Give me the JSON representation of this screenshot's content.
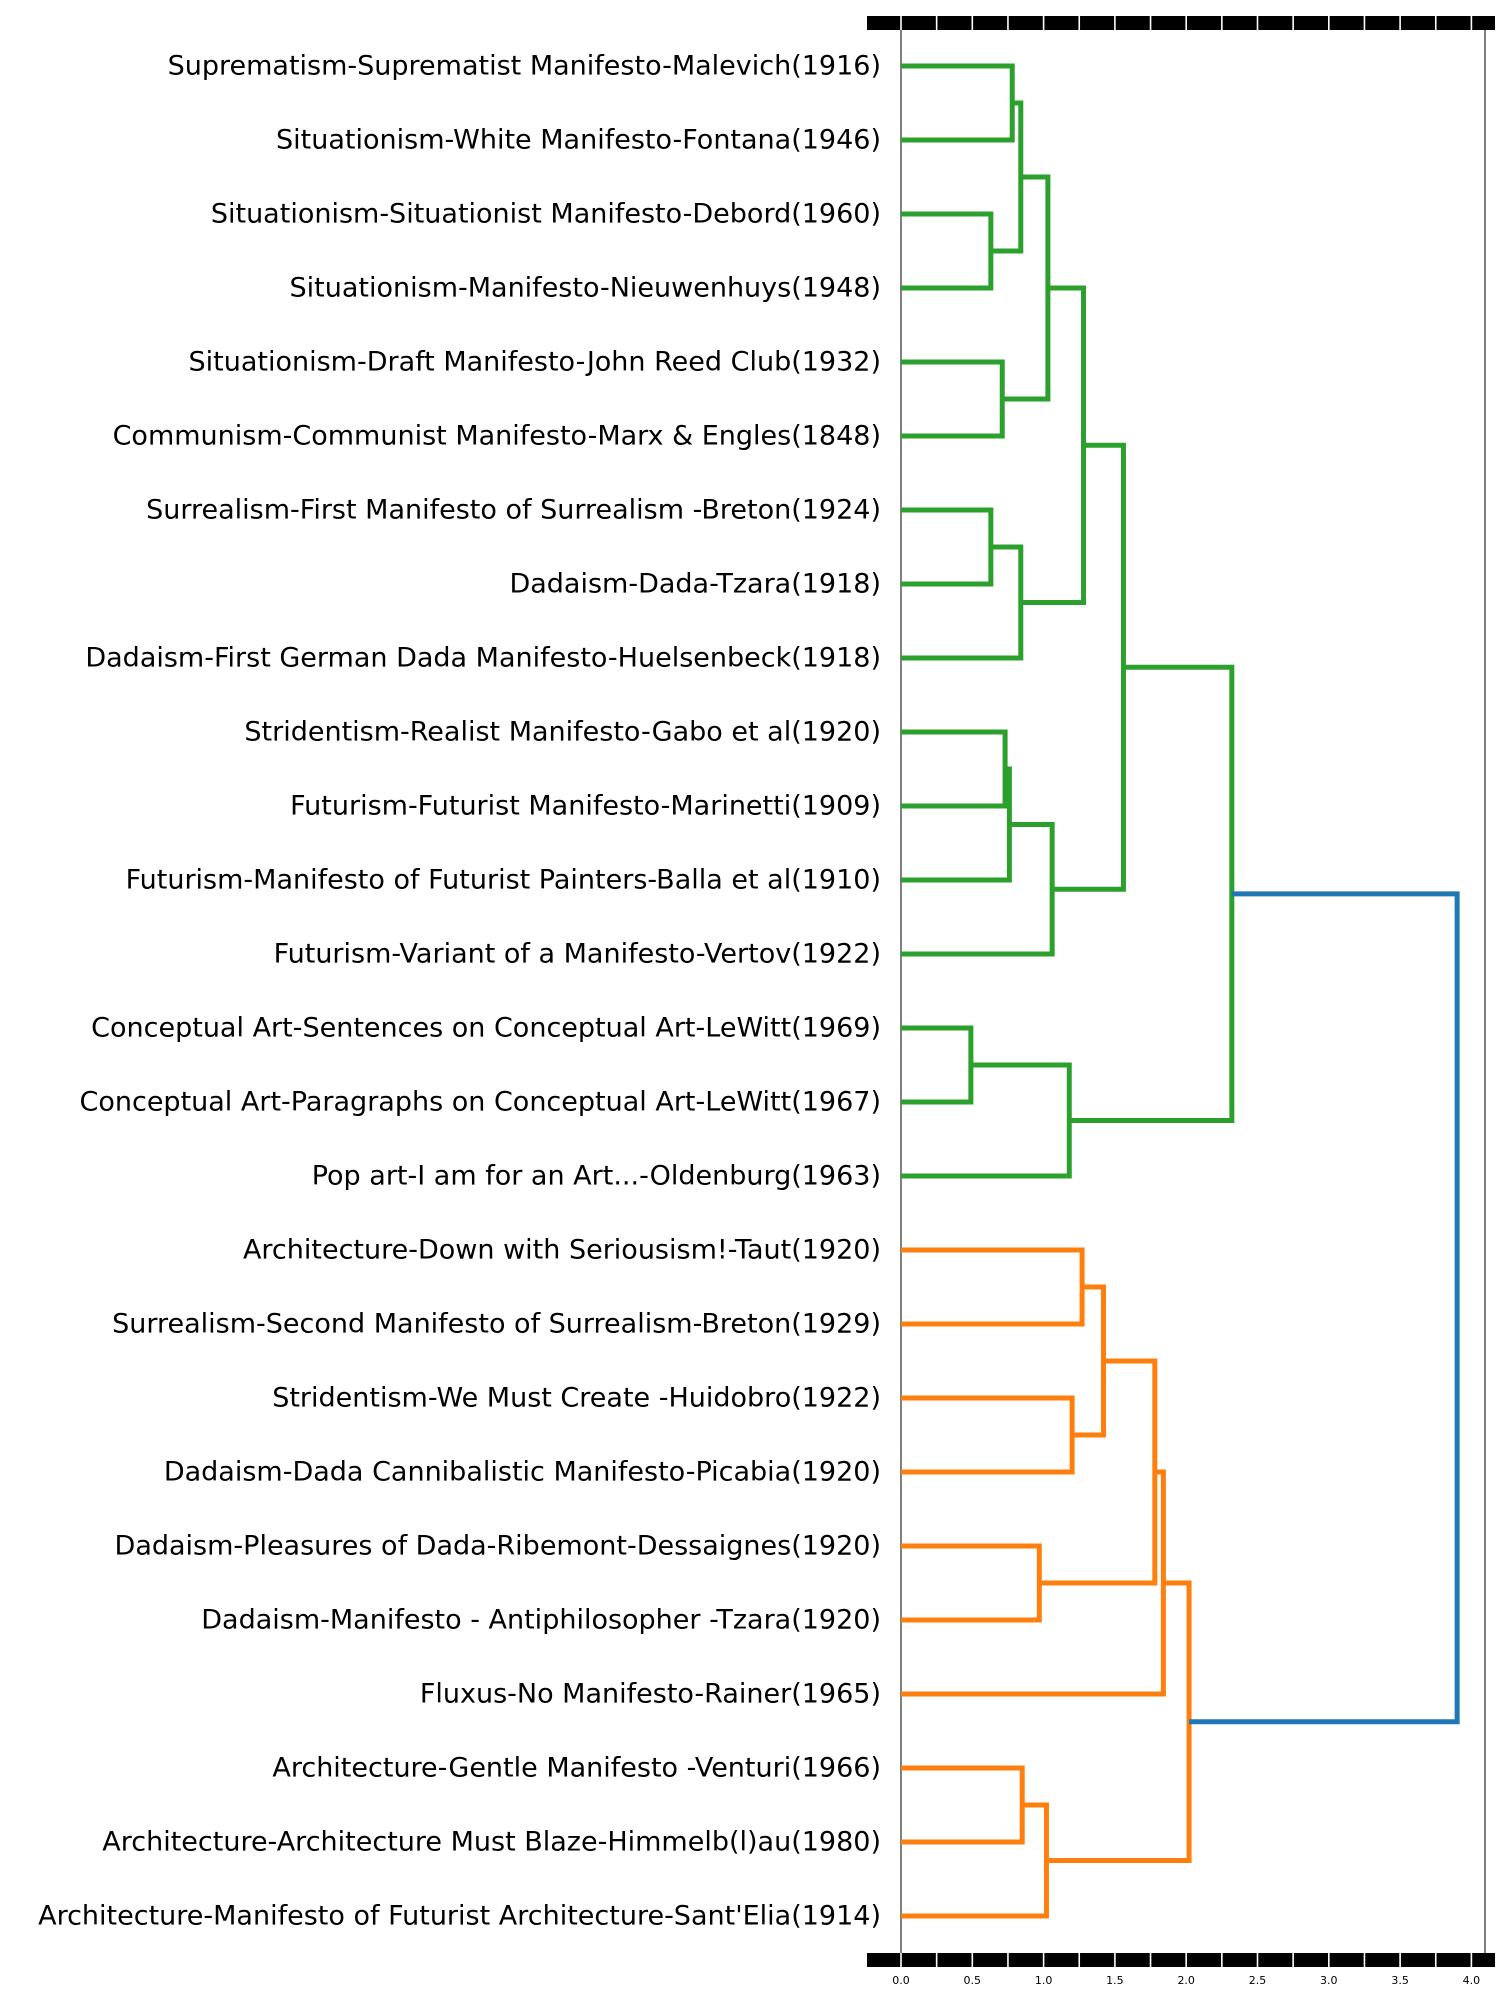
{
  "chart_data": {
    "type": "dendrogram",
    "orientation": "horizontal",
    "xlim": [
      0,
      4.1
    ],
    "x_ticks": [
      0.0,
      0.5,
      1.0,
      1.5,
      2.0,
      2.5,
      3.0,
      3.5,
      4.0
    ],
    "x_tick_labels": [
      "0.0",
      "0.5",
      "1.0",
      "1.5",
      "2.0",
      "2.5",
      "3.0",
      "3.5",
      "4.0"
    ],
    "colors": {
      "cluster_1": "#2ca02c",
      "cluster_2": "#ff7f0e",
      "above_threshold": "#1f77b4"
    },
    "leaves": [
      "Suprematism-Suprematist Manifesto-Malevich(1916)",
      "Situationism-White Manifesto-Fontana(1946)",
      "Situationism-Situationist Manifesto-Debord(1960)",
      "Situationism-Manifesto-Nieuwenhuys(1948)",
      "Situationism-Draft Manifesto-John Reed Club(1932)",
      "Communism-Communist Manifesto-Marx & Engles(1848)",
      "Surrealism-First Manifesto of Surrealism -Breton(1924)",
      "Dadaism-Dada-Tzara(1918)",
      "Dadaism-First German Dada Manifesto-Huelsenbeck(1918)",
      "Stridentism-Realist Manifesto-Gabo et al(1920)",
      "Futurism-Futurist Manifesto-Marinetti(1909)",
      "Futurism-Manifesto of Futurist Painters-Balla et al(1910)",
      "Futurism-Variant of a Manifesto-Vertov(1922)",
      "Conceptual Art-Sentences on Conceptual Art-LeWitt(1969)",
      "Conceptual Art-Paragraphs on Conceptual Art-LeWitt(1967)",
      "Pop art-I am for an Art...-Oldenburg(1963)",
      "Architecture-Down with Seriousism!-Taut(1920)",
      "Surrealism-Second Manifesto of Surrealism-Breton(1929)",
      "Stridentism-We Must Create -Huidobro(1922)",
      "Dadaism-Dada Cannibalistic Manifesto-Picabia(1920)",
      "Dadaism-Pleasures of Dada-Ribemont-Dessaignes(1920)",
      "Dadaism-Manifesto - Antiphilosopher -Tzara(1920)",
      "Fluxus-No Manifesto-Rainer(1965)",
      "Architecture-Gentle Manifesto -Venturi(1966)",
      "Architecture-Architecture Must Blaze-Himmelb(l)au(1980)",
      "Architecture-Manifesto of Futurist Architecture-Sant'Elia(1914)"
    ],
    "merges": [
      {
        "id": "m1",
        "left": 0,
        "right": 1,
        "height": 0.78,
        "color": "cluster_1"
      },
      {
        "id": "m2",
        "left": 2,
        "right": 3,
        "height": 0.63,
        "color": "cluster_1"
      },
      {
        "id": "m3",
        "left": "m1",
        "right": "m2",
        "height": 0.84,
        "color": "cluster_1"
      },
      {
        "id": "m4",
        "left": 4,
        "right": 5,
        "height": 0.71,
        "color": "cluster_1"
      },
      {
        "id": "m5",
        "left": "m3",
        "right": "m4",
        "height": 1.03,
        "color": "cluster_1"
      },
      {
        "id": "m6",
        "left": 6,
        "right": 7,
        "height": 0.63,
        "color": "cluster_1"
      },
      {
        "id": "m7",
        "left": "m6",
        "right": 8,
        "height": 0.84,
        "color": "cluster_1"
      },
      {
        "id": "m8",
        "left": "m5",
        "right": "m7",
        "height": 1.28,
        "color": "cluster_1"
      },
      {
        "id": "m9",
        "left": 9,
        "right": 10,
        "height": 0.73,
        "color": "cluster_1"
      },
      {
        "id": "m10",
        "left": "m9",
        "right": 11,
        "height": 0.76,
        "color": "cluster_1"
      },
      {
        "id": "m11",
        "left": "m10",
        "right": 12,
        "height": 1.06,
        "color": "cluster_1"
      },
      {
        "id": "m12",
        "left": "m8",
        "right": "m11",
        "height": 1.56,
        "color": "cluster_1"
      },
      {
        "id": "m13",
        "left": 13,
        "right": 14,
        "height": 0.49,
        "color": "cluster_1"
      },
      {
        "id": "m14",
        "left": "m13",
        "right": 15,
        "height": 1.18,
        "color": "cluster_1"
      },
      {
        "id": "m15",
        "left": "m12",
        "right": "m14",
        "height": 2.32,
        "color": "cluster_1"
      },
      {
        "id": "m16",
        "left": 16,
        "right": 17,
        "height": 1.27,
        "color": "cluster_2"
      },
      {
        "id": "m17",
        "left": 18,
        "right": 19,
        "height": 1.2,
        "color": "cluster_2"
      },
      {
        "id": "m18",
        "left": "m16",
        "right": "m17",
        "height": 1.42,
        "color": "cluster_2"
      },
      {
        "id": "m19",
        "left": 20,
        "right": 21,
        "height": 0.97,
        "color": "cluster_2"
      },
      {
        "id": "m20",
        "left": "m18",
        "right": "m19",
        "height": 1.78,
        "color": "cluster_2"
      },
      {
        "id": "m21",
        "left": "m20",
        "right": 22,
        "height": 1.84,
        "color": "cluster_2"
      },
      {
        "id": "m22",
        "left": 23,
        "right": 24,
        "height": 0.85,
        "color": "cluster_2"
      },
      {
        "id": "m23",
        "left": "m22",
        "right": 25,
        "height": 1.02,
        "color": "cluster_2"
      },
      {
        "id": "m24",
        "left": "m21",
        "right": "m23",
        "height": 2.02,
        "color": "cluster_2"
      },
      {
        "id": "m25",
        "left": "m15",
        "right": "m24",
        "height": 3.9,
        "color": "above_threshold"
      }
    ]
  }
}
